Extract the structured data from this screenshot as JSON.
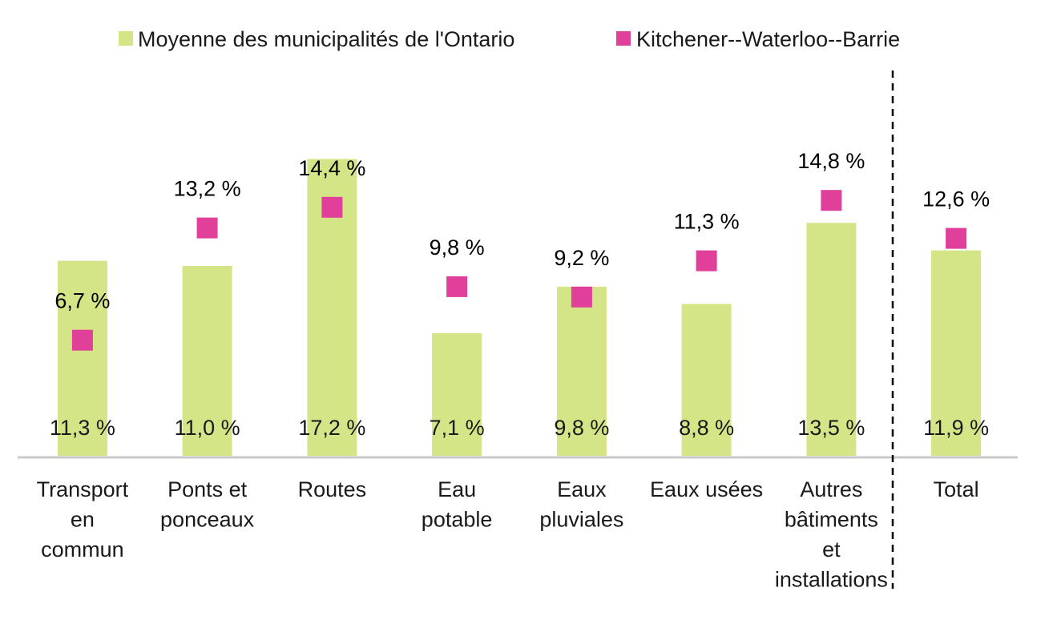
{
  "chart_data": {
    "type": "bar",
    "categories": [
      [
        "Transport",
        "en",
        "commun"
      ],
      [
        "Ponts et",
        "ponceaux"
      ],
      [
        "Routes"
      ],
      [
        "Eau",
        "potable"
      ],
      [
        "Eaux",
        "pluviales"
      ],
      [
        "Eaux usées"
      ],
      [
        "Autres",
        "bâtiments",
        "et",
        "installations"
      ],
      [
        "Total"
      ]
    ],
    "series": [
      {
        "name": "Moyenne des municipalités de l'Ontario",
        "kind": "bar",
        "color": "#d4e587",
        "values": [
          11.3,
          11.0,
          17.2,
          7.1,
          9.8,
          8.8,
          13.5,
          11.9
        ],
        "labels": [
          "11,3 %",
          "11,0 %",
          "17,2 %",
          "7,1 %",
          "9,8 %",
          "8,8 %",
          "13,5 %",
          "11,9 %"
        ]
      },
      {
        "name": "Kitchener--Waterloo--Barrie",
        "kind": "marker",
        "color": "#e0409a",
        "values": [
          6.7,
          13.2,
          14.4,
          9.8,
          9.2,
          11.3,
          14.8,
          12.6
        ],
        "labels": [
          "6,7 %",
          "13,2 %",
          "14,4 %",
          "9,8 %",
          "9,2 %",
          "11,3 %",
          "14,8 %",
          "12,6 %"
        ]
      }
    ],
    "ylim": [
      0,
      17.5
    ],
    "grid": false,
    "legend_position": "top",
    "separator_before": "Total",
    "xlabel": "",
    "ylabel": "",
    "title": ""
  }
}
